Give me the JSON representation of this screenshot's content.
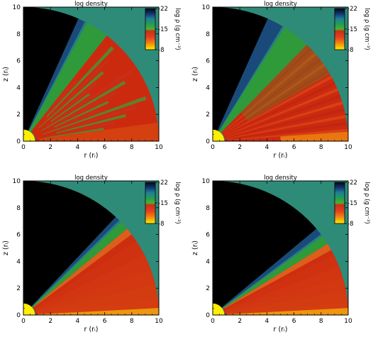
{
  "panels": [
    {
      "title": "log density",
      "xlabel": "r (rᵢ)",
      "ylabel": "z (rᵢ)",
      "cbar_label": "log ρ (g cm⁻³)",
      "structure": "turbulent"
    },
    {
      "title": "log density",
      "xlabel": "r (rᵢ)",
      "ylabel": "z (rᵢ)",
      "cbar_label": "log ρ (g cm⁻³)",
      "structure": "wide-wind"
    },
    {
      "title": "log density",
      "xlabel": "r (rᵢ)",
      "ylabel": "z (rᵢ)",
      "cbar_label": "log ρ (g cm⁻³)",
      "structure": "smooth-thick"
    },
    {
      "title": "log density",
      "xlabel": "r (rᵢ)",
      "ylabel": "z (rᵢ)",
      "cbar_label": "log ρ (g cm⁻³)",
      "structure": "smooth-thin"
    }
  ],
  "chart_data": {
    "type": "heatmap",
    "xlim": [
      0,
      10
    ],
    "ylim": [
      0,
      10
    ],
    "xticks": [
      "0",
      "2",
      "4",
      "6",
      "8",
      "10"
    ],
    "yticks": [
      "0",
      "2",
      "4",
      "6",
      "8",
      "10"
    ],
    "colorbar_ticks": [
      "-22",
      "-15",
      "-8"
    ],
    "colorbar_range": [
      -22,
      -8
    ],
    "colors": {
      "background_ambient": "#2e8b78",
      "vacuum": "#000000",
      "central_body": "#ffee00",
      "disk_core": "#cc2a0f",
      "disk_mid": "#e0501a",
      "wind_green": "#2f9a3a"
    }
  }
}
